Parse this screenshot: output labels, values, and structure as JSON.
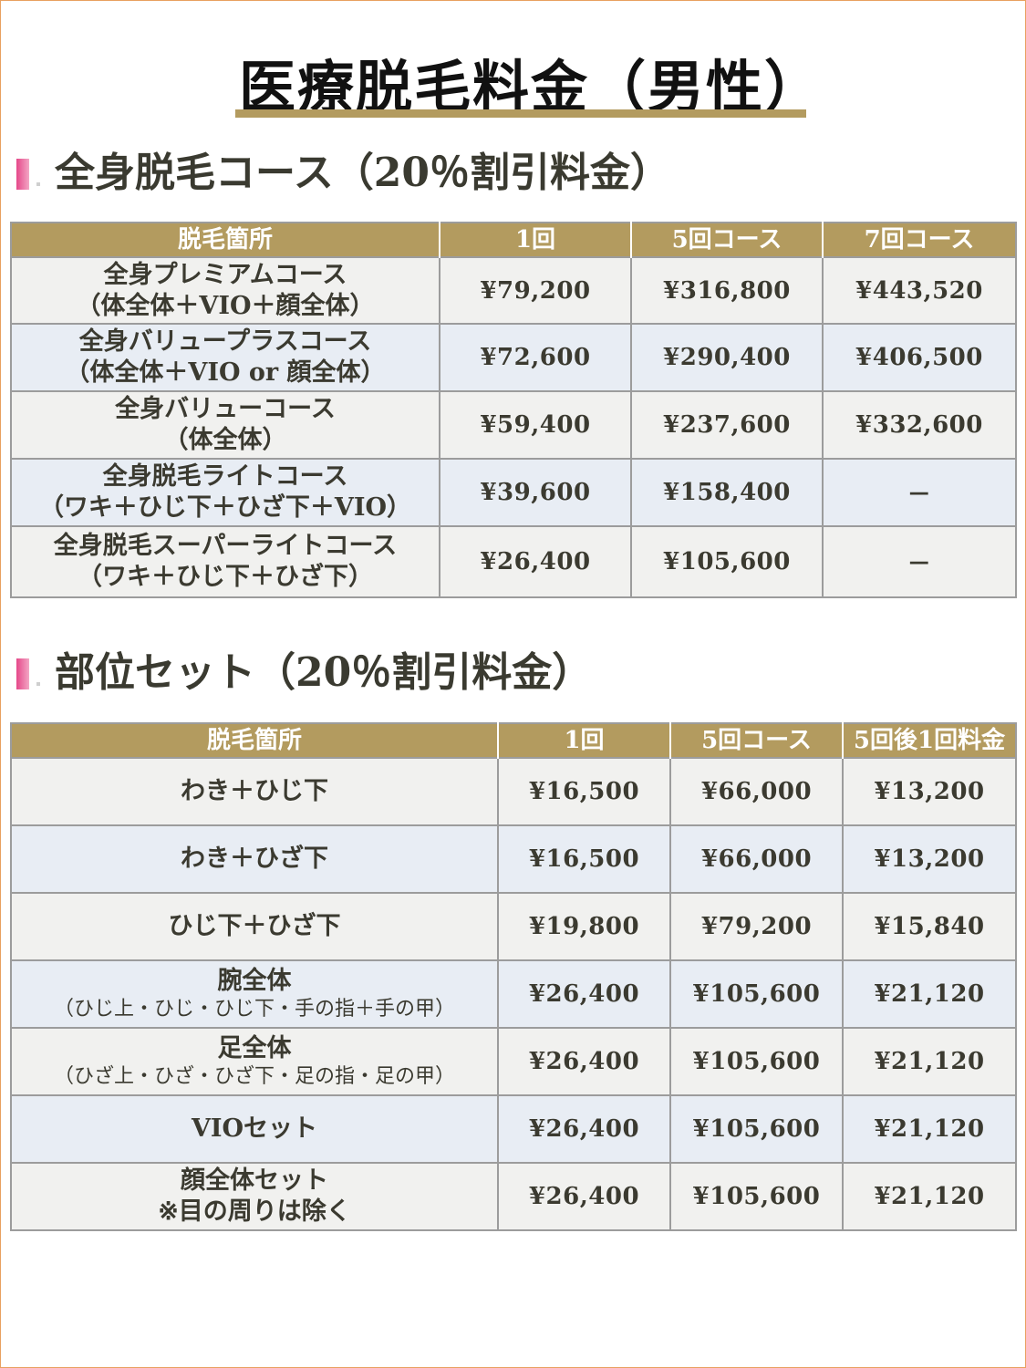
{
  "title": "医療脱毛料金（男性）",
  "section1": {
    "heading": "全身脱毛コース（20％割引料金）",
    "headers": [
      "脱毛箇所",
      "1回",
      "5回コース",
      "7回コース"
    ],
    "rows": [
      {
        "name": "全身プレミアムコース",
        "sub": "（体全体＋VIO＋顔全体）",
        "prices": [
          "¥79,200",
          "¥316,800",
          "¥443,520"
        ]
      },
      {
        "name": "全身バリュープラスコース",
        "sub": "（体全体＋VIO or 顔全体）",
        "prices": [
          "¥72,600",
          "¥290,400",
          "¥406,500"
        ]
      },
      {
        "name": "全身バリューコース",
        "sub": "（体全体）",
        "prices": [
          "¥59,400",
          "¥237,600",
          "¥332,600"
        ]
      },
      {
        "name": "全身脱毛ライトコース",
        "sub": "（ワキ＋ひじ下＋ひざ下＋VIO）",
        "prices": [
          "¥39,600",
          "¥158,400",
          "－"
        ]
      },
      {
        "name": "全身脱毛スーパーライトコース",
        "sub": "（ワキ＋ひじ下＋ひざ下）",
        "prices": [
          "¥26,400",
          "¥105,600",
          "－"
        ]
      }
    ]
  },
  "section2": {
    "heading": "部位セット（20％割引料金）",
    "headers": [
      "脱毛箇所",
      "1回",
      "5回コース",
      "5回後1回料金"
    ],
    "rows": [
      {
        "name": "わき＋ひじ下",
        "sub": "",
        "prices": [
          "¥16,500",
          "¥66,000",
          "¥13,200"
        ]
      },
      {
        "name": "わき＋ひざ下",
        "sub": "",
        "prices": [
          "¥16,500",
          "¥66,000",
          "¥13,200"
        ]
      },
      {
        "name": "ひじ下＋ひざ下",
        "sub": "",
        "prices": [
          "¥19,800",
          "¥79,200",
          "¥15,840"
        ]
      },
      {
        "name": "腕全体",
        "sub": "（ひじ上・ひじ・ひじ下・手の指＋手の甲）",
        "prices": [
          "¥26,400",
          "¥105,600",
          "¥21,120"
        ]
      },
      {
        "name": "足全体",
        "sub": "（ひざ上・ひざ・ひざ下・足の指・足の甲）",
        "prices": [
          "¥26,400",
          "¥105,600",
          "¥21,120"
        ]
      },
      {
        "name": "VIOセット",
        "sub": "",
        "prices": [
          "¥26,400",
          "¥105,600",
          "¥21,120"
        ]
      },
      {
        "name": "顔全体セット",
        "sub": "※目の周りは除く",
        "prices": [
          "¥26,400",
          "¥105,600",
          "¥21,120"
        ]
      }
    ]
  }
}
